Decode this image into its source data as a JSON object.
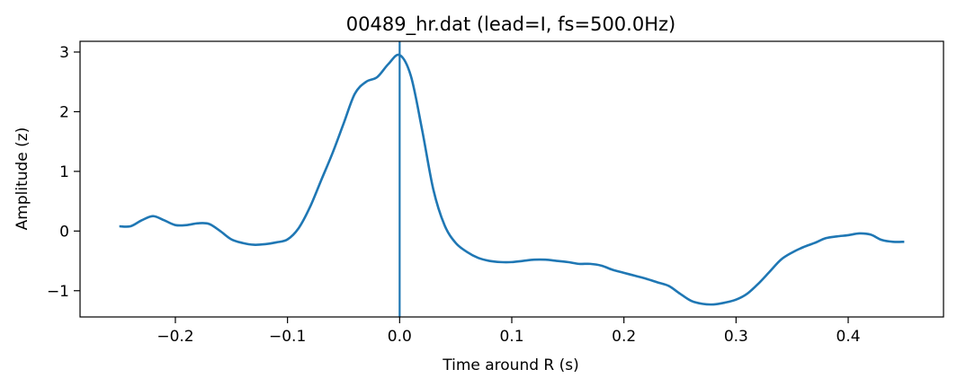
{
  "chart_data": {
    "type": "line",
    "title": "00489_hr.dat (lead=I, fs=500.0Hz)",
    "xlabel": "Time around R (s)",
    "ylabel": "Amplitude (z)",
    "xlim": [
      -0.285,
      0.485
    ],
    "ylim": [
      -1.44,
      3.18
    ],
    "xticks": [
      -0.2,
      -0.1,
      0.0,
      0.1,
      0.2,
      0.3,
      0.4
    ],
    "xtick_labels": [
      "−0.2",
      "−0.1",
      "0.0",
      "0.1",
      "0.2",
      "0.3",
      "0.4"
    ],
    "yticks": [
      -1,
      0,
      1,
      2,
      3
    ],
    "ytick_labels": [
      "−1",
      "0",
      "1",
      "2",
      "3"
    ],
    "grid": false,
    "vline_x": 0.0,
    "series": [
      {
        "color": "#1f77b4",
        "x": [
          -0.25,
          -0.24,
          -0.23,
          -0.22,
          -0.21,
          -0.2,
          -0.19,
          -0.18,
          -0.17,
          -0.16,
          -0.15,
          -0.14,
          -0.13,
          -0.12,
          -0.11,
          -0.1,
          -0.09,
          -0.08,
          -0.07,
          -0.06,
          -0.05,
          -0.04,
          -0.03,
          -0.02,
          -0.01,
          0.0,
          0.01,
          0.02,
          0.03,
          0.04,
          0.05,
          0.06,
          0.07,
          0.08,
          0.09,
          0.1,
          0.11,
          0.12,
          0.13,
          0.14,
          0.15,
          0.16,
          0.17,
          0.18,
          0.19,
          0.2,
          0.21,
          0.22,
          0.23,
          0.24,
          0.25,
          0.26,
          0.27,
          0.28,
          0.29,
          0.3,
          0.31,
          0.32,
          0.33,
          0.34,
          0.35,
          0.36,
          0.37,
          0.38,
          0.39,
          0.4,
          0.41,
          0.42,
          0.43,
          0.44,
          0.45
        ],
        "y": [
          0.08,
          0.08,
          0.18,
          0.25,
          0.18,
          0.1,
          0.1,
          0.13,
          0.12,
          0.0,
          -0.14,
          -0.2,
          -0.23,
          -0.22,
          -0.19,
          -0.14,
          0.05,
          0.4,
          0.85,
          1.3,
          1.8,
          2.3,
          2.5,
          2.58,
          2.8,
          2.95,
          2.6,
          1.7,
          0.7,
          0.1,
          -0.2,
          -0.35,
          -0.45,
          -0.5,
          -0.52,
          -0.52,
          -0.5,
          -0.48,
          -0.48,
          -0.5,
          -0.52,
          -0.55,
          -0.55,
          -0.58,
          -0.65,
          -0.7,
          -0.75,
          -0.8,
          -0.86,
          -0.92,
          -1.05,
          -1.17,
          -1.22,
          -1.23,
          -1.2,
          -1.15,
          -1.05,
          -0.88,
          -0.68,
          -0.48,
          -0.36,
          -0.27,
          -0.2,
          -0.12,
          -0.09,
          -0.07,
          -0.04,
          -0.06,
          -0.15,
          -0.18,
          -0.18
        ]
      }
    ]
  }
}
